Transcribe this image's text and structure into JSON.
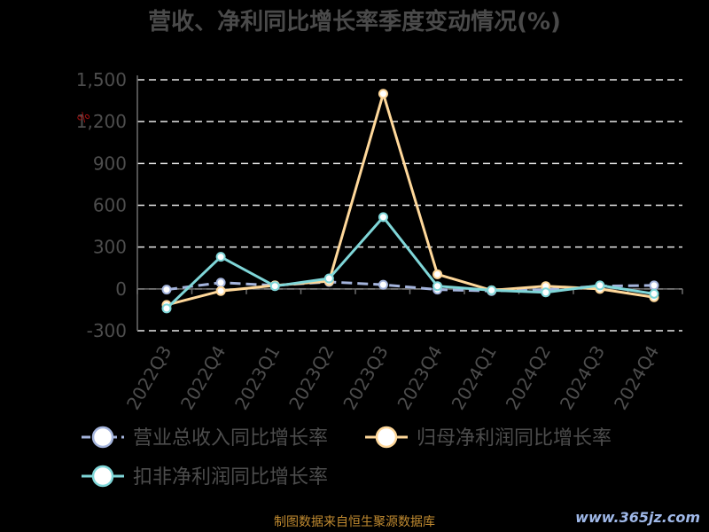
{
  "chart_data": {
    "type": "line",
    "title": "营收、净利同比增长率季度变动情况(%)",
    "ylabel": "%",
    "categories": [
      "2022Q3",
      "2022Q4",
      "2023Q1",
      "2023Q2",
      "2023Q3",
      "2023Q4",
      "2024Q1",
      "2024Q2",
      "2024Q3",
      "2024Q4"
    ],
    "ylim": [
      -300,
      1500
    ],
    "yticks": [
      -300,
      0,
      300,
      600,
      900,
      1200,
      1500
    ],
    "ytick_labels": [
      "-300",
      "0",
      "300",
      "600",
      "900",
      "1,200",
      "1,500"
    ],
    "grid": true,
    "legend_position": "bottom",
    "series": [
      {
        "name": "营业总收入同比增长率",
        "color": "#a4b4dc",
        "values": [
          -5,
          45,
          25,
          50,
          30,
          -5,
          -15,
          -5,
          20,
          25
        ]
      },
      {
        "name": "归母净利润同比增长率",
        "color": "#ffd89a",
        "values": [
          -115,
          -15,
          25,
          55,
          1400,
          105,
          -10,
          20,
          0,
          -60
        ]
      },
      {
        "name": "扣非净利润同比增长率",
        "color": "#7fd6d8",
        "values": [
          -140,
          230,
          20,
          75,
          515,
          20,
          -10,
          -25,
          25,
          -35
        ]
      }
    ]
  },
  "footer": {
    "source": "制图数据来自恒生聚源数据库",
    "watermark": "www.365jz.com"
  }
}
